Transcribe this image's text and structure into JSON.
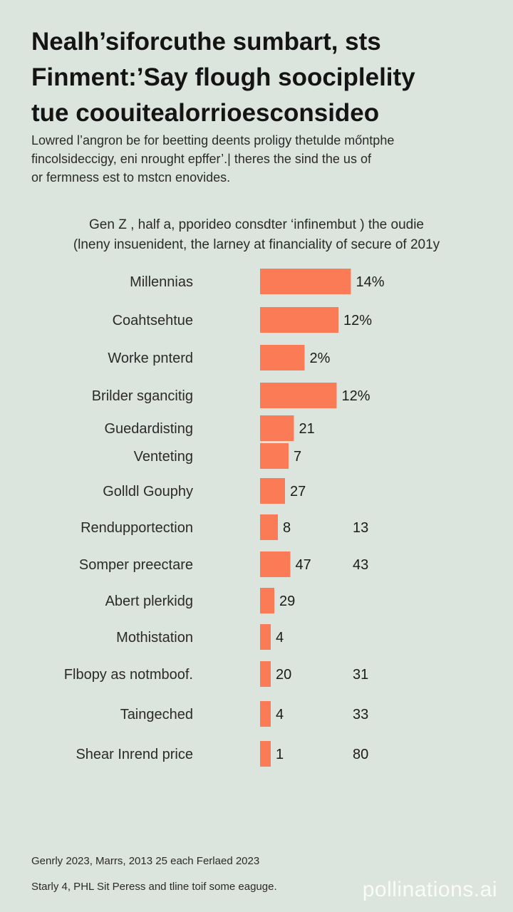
{
  "headline": [
    "Nealh’siforcuthe sumbart, sts",
    "Finment:’Say flough soociplelity",
    "tue coouitealorrioesconsideo"
  ],
  "intro": [
    "Lowred l’angron be for beetting deents proligy thetulde mőntphe",
    "fincolsideccigy, eni nrought epffer’.| theres the sind the us of",
    "or fermness est to mstcn enovides."
  ],
  "subtitle": [
    "Gen Z , half a, pporideo consdter ‘infinembut ) the oudie",
    "(lneny insuenident, the larney at financiality of secure of 201y"
  ],
  "chart_data": {
    "type": "bar",
    "orientation": "horizontal",
    "categories": [
      "Millennias",
      "Coahtsehtue",
      "Worke pnterd",
      "Brilder sgancitig",
      "Guedardisting",
      "Venteting",
      "Golldl Gouphy",
      "Rendupportection",
      "Somper preectare",
      "Abert plerkidg",
      "Mothistation",
      "Flbopy as notmboof.",
      "Taingeched",
      "Shear Inrend price"
    ],
    "values": [
      51,
      44,
      25,
      43,
      19,
      16,
      14,
      10,
      17,
      8,
      6,
      6,
      6,
      6
    ],
    "value_labels": [
      "14%",
      "12%",
      "2%",
      "12%",
      "21",
      "7",
      "27",
      "8",
      "47",
      "29",
      "4",
      "20",
      "4",
      "1"
    ],
    "secondary_labels": [
      "",
      "",
      "",
      "",
      "",
      "",
      "",
      "13",
      "43",
      "",
      "",
      "31",
      "33",
      "80"
    ],
    "bar_color": "#fa7b55",
    "grid": false,
    "legend": "none"
  },
  "footer": [
    "Genrly 2023, Marrs, 2013 25 each Ferlaed 2023",
    "Starly 4, PHL Sit Peress and tline toif some eaguge."
  ],
  "watermark": "pollinations.ai"
}
